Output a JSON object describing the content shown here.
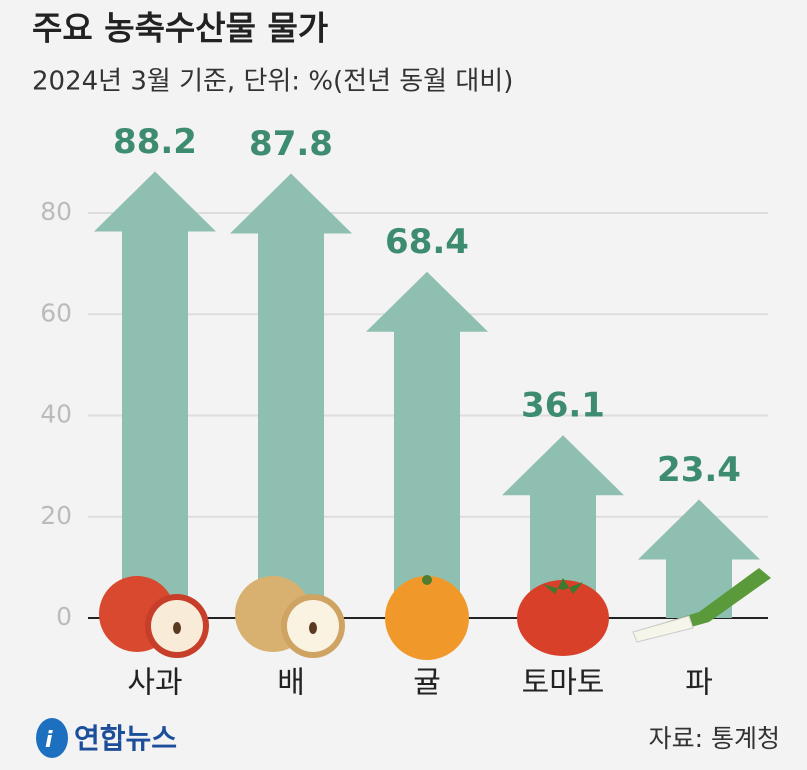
{
  "chart_data": {
    "type": "arrow-bar",
    "title": "주요 농축수산물 물가",
    "subtitle": "2024년 3월 기준, 단위: %(전년 동월 대비)",
    "categories": [
      "사과",
      "배",
      "귤",
      "토마토",
      "파"
    ],
    "values": [
      88.2,
      87.8,
      68.4,
      36.1,
      23.4
    ],
    "color": "#8fbfb1",
    "label_color": "#3d8c70",
    "ylim": [
      0,
      95
    ],
    "yticks": [
      0,
      20,
      40,
      60,
      80
    ],
    "grid": true,
    "source": "자료: 통계청",
    "logo": "연합뉴스"
  }
}
